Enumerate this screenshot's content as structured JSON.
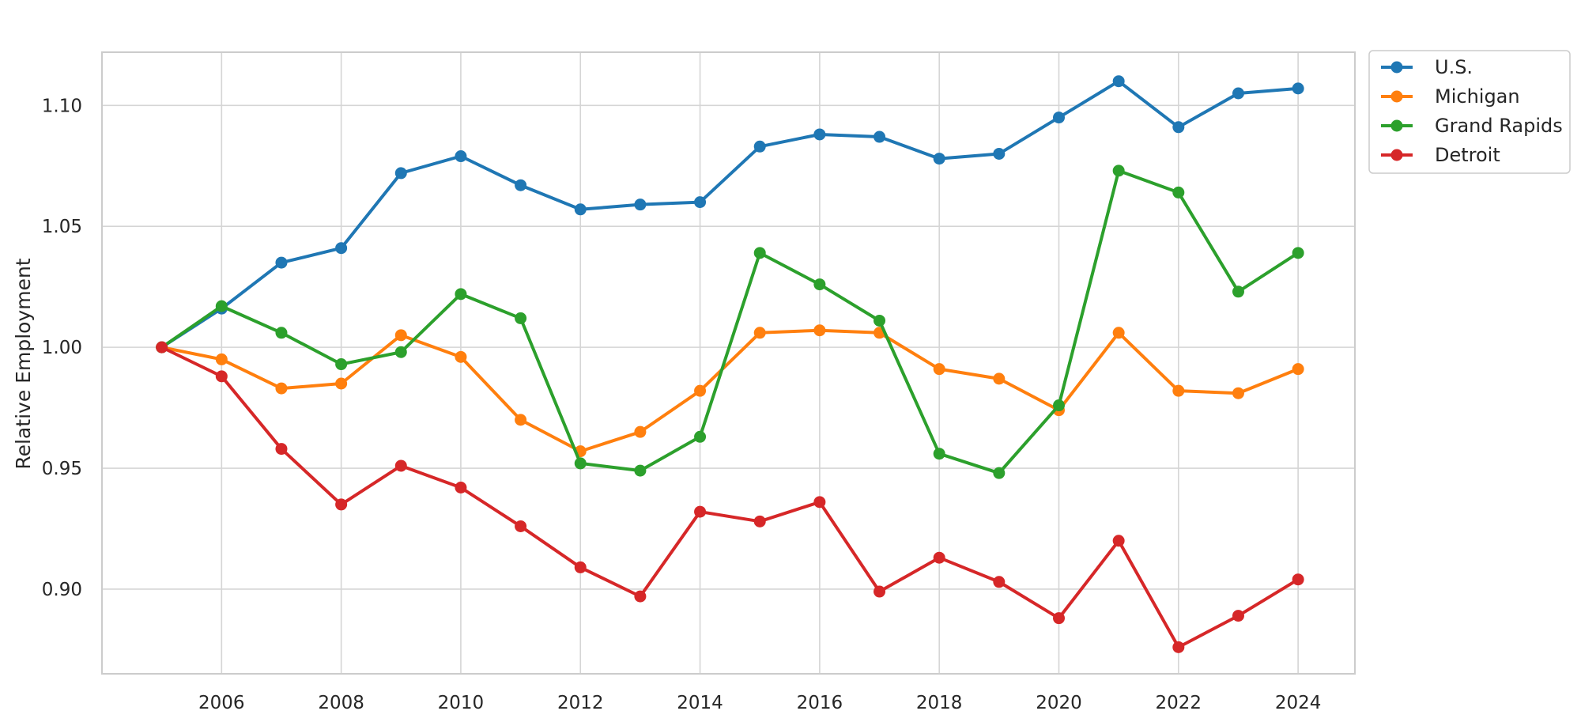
{
  "chart_data": {
    "type": "line",
    "ylabel": "Relative Employment",
    "xlabel": "",
    "x": [
      2005,
      2006,
      2007,
      2008,
      2009,
      2010,
      2011,
      2012,
      2013,
      2014,
      2015,
      2016,
      2017,
      2018,
      2019,
      2020,
      2021,
      2022,
      2023,
      2024
    ],
    "x_ticks": [
      2006,
      2008,
      2010,
      2012,
      2014,
      2016,
      2018,
      2020,
      2022,
      2024
    ],
    "x_tick_labels": [
      "2006",
      "2008",
      "2010",
      "2012",
      "2014",
      "2016",
      "2018",
      "2020",
      "2022",
      "2024"
    ],
    "xlim": [
      2004.0,
      2024.95
    ],
    "y_ticks": [
      0.9,
      0.95,
      1.0,
      1.05,
      1.1
    ],
    "y_tick_labels": [
      "0.90",
      "0.95",
      "1.00",
      "1.05",
      "1.10"
    ],
    "ylim": [
      0.865,
      1.122
    ],
    "grid": true,
    "legend_position": "outside-top-right",
    "series": [
      {
        "name": "U.S.",
        "color": "#1f77b4",
        "values": [
          1.0,
          1.016,
          1.035,
          1.041,
          1.072,
          1.079,
          1.067,
          1.057,
          1.059,
          1.06,
          1.083,
          1.088,
          1.087,
          1.078,
          1.08,
          1.095,
          1.11,
          1.091,
          1.105,
          1.107
        ]
      },
      {
        "name": "Michigan",
        "color": "#ff7f0e",
        "values": [
          1.0,
          0.995,
          0.983,
          0.985,
          1.005,
          0.996,
          0.97,
          0.957,
          0.965,
          0.982,
          1.006,
          1.007,
          1.006,
          0.991,
          0.987,
          0.974,
          1.006,
          0.982,
          0.981,
          0.991
        ]
      },
      {
        "name": "Grand Rapids",
        "color": "#2ca02c",
        "values": [
          1.0,
          1.017,
          1.006,
          0.993,
          0.998,
          1.022,
          1.012,
          0.952,
          0.949,
          0.963,
          1.039,
          1.026,
          1.011,
          0.956,
          0.948,
          0.976,
          1.073,
          1.064,
          1.023,
          1.039
        ]
      },
      {
        "name": "Detroit",
        "color": "#d62728",
        "values": [
          1.0,
          0.988,
          0.958,
          0.935,
          0.951,
          0.942,
          0.926,
          0.909,
          0.897,
          0.932,
          0.928,
          0.936,
          0.899,
          0.913,
          0.903,
          0.888,
          0.92,
          0.876,
          0.889,
          0.904
        ]
      }
    ]
  }
}
